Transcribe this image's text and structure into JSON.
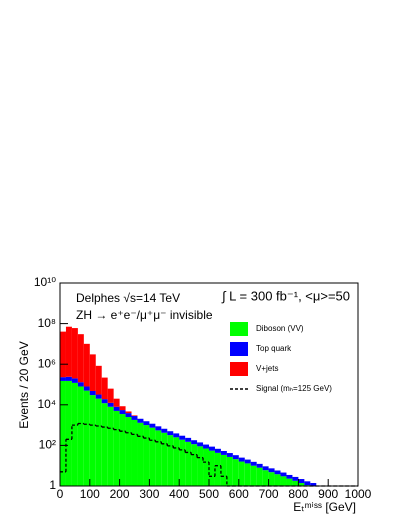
{
  "chart_data": {
    "type": "stacked_histogram",
    "ylabel": "Events / 20 GeV",
    "xlabel": "Eₜᵐⁱˢˢ [GeV]",
    "annotations": [
      "Delphes √s=14 TeV",
      "ZH → e⁺e⁻/μ⁺μ⁻ invisible",
      "∫ L = 300 fb⁻¹, <μ>=50"
    ],
    "log_y": true,
    "bins": [
      0,
      20,
      40,
      60,
      80,
      100,
      120,
      140,
      160,
      180,
      200,
      220,
      240,
      260,
      280,
      300,
      320,
      340,
      360,
      380,
      400,
      420,
      440,
      460,
      480,
      500,
      520,
      540,
      560,
      580,
      600,
      620,
      640,
      660,
      680,
      700,
      720,
      740,
      760,
      780,
      800,
      820,
      840,
      860,
      880,
      900,
      920,
      940,
      960,
      980,
      1000
    ],
    "series": [
      {
        "name": "Diboson (VV)",
        "color": "#00ff00",
        "values": [
          150000,
          150000,
          120000,
          80000,
          50000,
          30000,
          20000,
          12000,
          8000,
          5000,
          3500,
          2500,
          1800,
          1300,
          1000,
          750,
          550,
          420,
          320,
          250,
          190,
          150,
          115,
          90,
          70,
          55,
          43,
          34,
          27,
          21,
          16,
          13,
          10,
          8,
          6,
          4.8,
          3.8,
          3,
          2.3,
          1.8,
          1.4,
          1.1,
          0.9,
          0,
          0,
          0,
          0,
          0,
          0,
          0
        ]
      },
      {
        "name": "Top quark",
        "color": "#0000ff",
        "values": [
          80000,
          90000,
          80000,
          50000,
          30000,
          18000,
          12000,
          7000,
          4500,
          3000,
          2000,
          1400,
          1000,
          750,
          550,
          420,
          320,
          240,
          180,
          140,
          110,
          85,
          65,
          50,
          40,
          32,
          25,
          19,
          15,
          12,
          9,
          7,
          5.5,
          4.3,
          3.3,
          2.6,
          2,
          1.6,
          1.2,
          1,
          0.8,
          0.6,
          0.5,
          0,
          0,
          0,
          0,
          0,
          0,
          0
        ]
      },
      {
        "name": "V+jets",
        "color": "#ff0000",
        "values": [
          40000000,
          70000000,
          60000000,
          30000000,
          10000000,
          3000000,
          800000,
          200000,
          50000,
          12000,
          3000,
          800,
          200,
          0,
          0,
          0,
          0,
          0,
          0,
          0,
          0,
          0,
          0,
          0,
          0,
          0,
          0,
          0,
          0,
          0,
          0,
          0,
          0,
          0,
          0,
          0,
          0,
          0,
          0,
          0,
          0,
          0,
          0,
          0,
          0,
          0,
          0,
          0,
          0,
          0
        ]
      },
      {
        "name": "Signal (mₕ=125 GeV)",
        "color": "#000000",
        "dashed": true,
        "stacked": false,
        "values": [
          5,
          200,
          1000,
          1200,
          1100,
          1000,
          900,
          800,
          700,
          600,
          500,
          420,
          350,
          280,
          230,
          180,
          150,
          120,
          95,
          75,
          60,
          45,
          35,
          25,
          15,
          3,
          10,
          3,
          1,
          0,
          0,
          0,
          0,
          0,
          0,
          0,
          0,
          0,
          0,
          0,
          0,
          0,
          0,
          0,
          0,
          0,
          0,
          0,
          0,
          0
        ]
      }
    ],
    "xlim": [
      0,
      1000
    ],
    "xticks": [
      0,
      100,
      200,
      300,
      400,
      500,
      600,
      700,
      800,
      900,
      1000
    ],
    "ylim": [
      1,
      10000000000
    ],
    "yticks": [
      1,
      {
        "value": 100,
        "label": "10²"
      },
      {
        "value": 10000,
        "label": "10⁴"
      },
      {
        "value": 1000000,
        "label": "10⁶"
      },
      {
        "value": 100000000,
        "label": "10⁸"
      },
      {
        "value": 10000000000,
        "label": "10¹⁰"
      }
    ]
  }
}
